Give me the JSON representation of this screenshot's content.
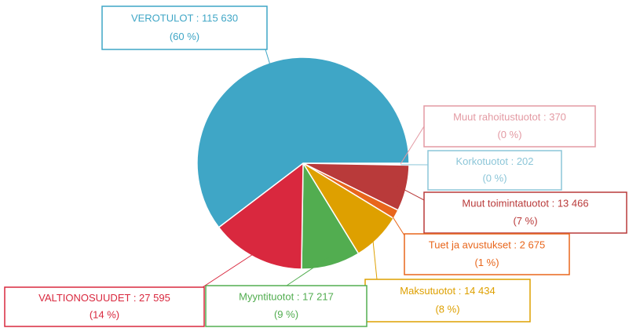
{
  "chart_data": {
    "type": "pie",
    "label_separator": " : ",
    "categories": [
      "Muut rahoitustuotot",
      "Korkotuotot",
      "Muut toimintatuotot",
      "Tuet ja avustukset",
      "Maksutuotot",
      "Myyntituotot",
      "VALTIONOSUUDET",
      "VEROTULOT"
    ],
    "values": [
      370,
      202,
      13466,
      2675,
      14434,
      17217,
      27595,
      115630
    ],
    "value_labels": [
      "370",
      "202",
      "13 466",
      "2 675",
      "14 434",
      "17 217",
      "27 595",
      "115 630"
    ],
    "percent_labels": [
      "(0 %)",
      "(0 %)",
      "(7 %)",
      "(1 %)",
      "(8 %)",
      "(9 %)",
      "(14 %)",
      "(60 %)"
    ],
    "colors": [
      "#e39aa3",
      "#8cc6d8",
      "#b93a3a",
      "#e8661c",
      "#dea000",
      "#52ad50",
      "#d9283e",
      "#3fa6c6"
    ]
  }
}
